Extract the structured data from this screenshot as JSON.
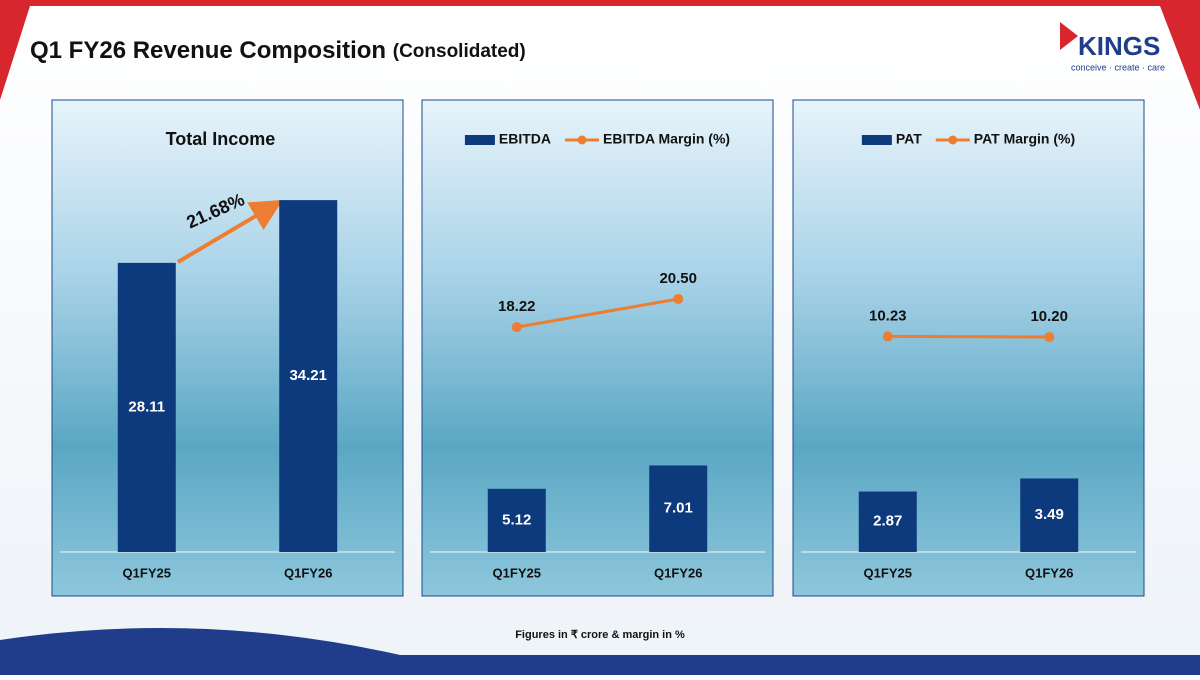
{
  "header": {
    "title": "Q1 FY26 Revenue Composition",
    "subtitle": "(Consolidated)"
  },
  "logo": {
    "name": "KINGS",
    "tagline": "conceive · create · care"
  },
  "footnote": "Figures in ₹ crore & margin in %",
  "chart_data": [
    {
      "type": "bar",
      "title": "Total Income",
      "categories": [
        "Q1FY25",
        "Q1FY26"
      ],
      "values": [
        28.11,
        34.21
      ],
      "color": "#0d3a7c",
      "ylim": [
        0,
        42
      ],
      "annotation": "21.68%"
    },
    {
      "type": "combo",
      "categories": [
        "Q1FY25",
        "Q1FY26"
      ],
      "ylim": [
        0,
        35
      ],
      "legend": "top",
      "series": [
        {
          "name": "EBITDA",
          "type": "bar",
          "color": "#0d3a7c",
          "values": [
            5.12,
            7.01
          ]
        },
        {
          "name": "EBITDA Margin (%)",
          "type": "line",
          "color": "#ed7d31",
          "values": [
            18.22,
            20.5
          ],
          "value_labels": [
            "18.22",
            "20.50"
          ]
        }
      ]
    },
    {
      "type": "combo",
      "categories": [
        "Q1FY25",
        "Q1FY26"
      ],
      "ylim": [
        0,
        20.5
      ],
      "legend": "top",
      "series": [
        {
          "name": "PAT",
          "type": "bar",
          "color": "#0d3a7c",
          "values": [
            2.87,
            3.49
          ]
        },
        {
          "name": "PAT Margin (%)",
          "type": "line",
          "color": "#ed7d31",
          "values": [
            10.23,
            10.2
          ],
          "value_labels": [
            "10.23",
            "10.20"
          ]
        }
      ]
    }
  ]
}
